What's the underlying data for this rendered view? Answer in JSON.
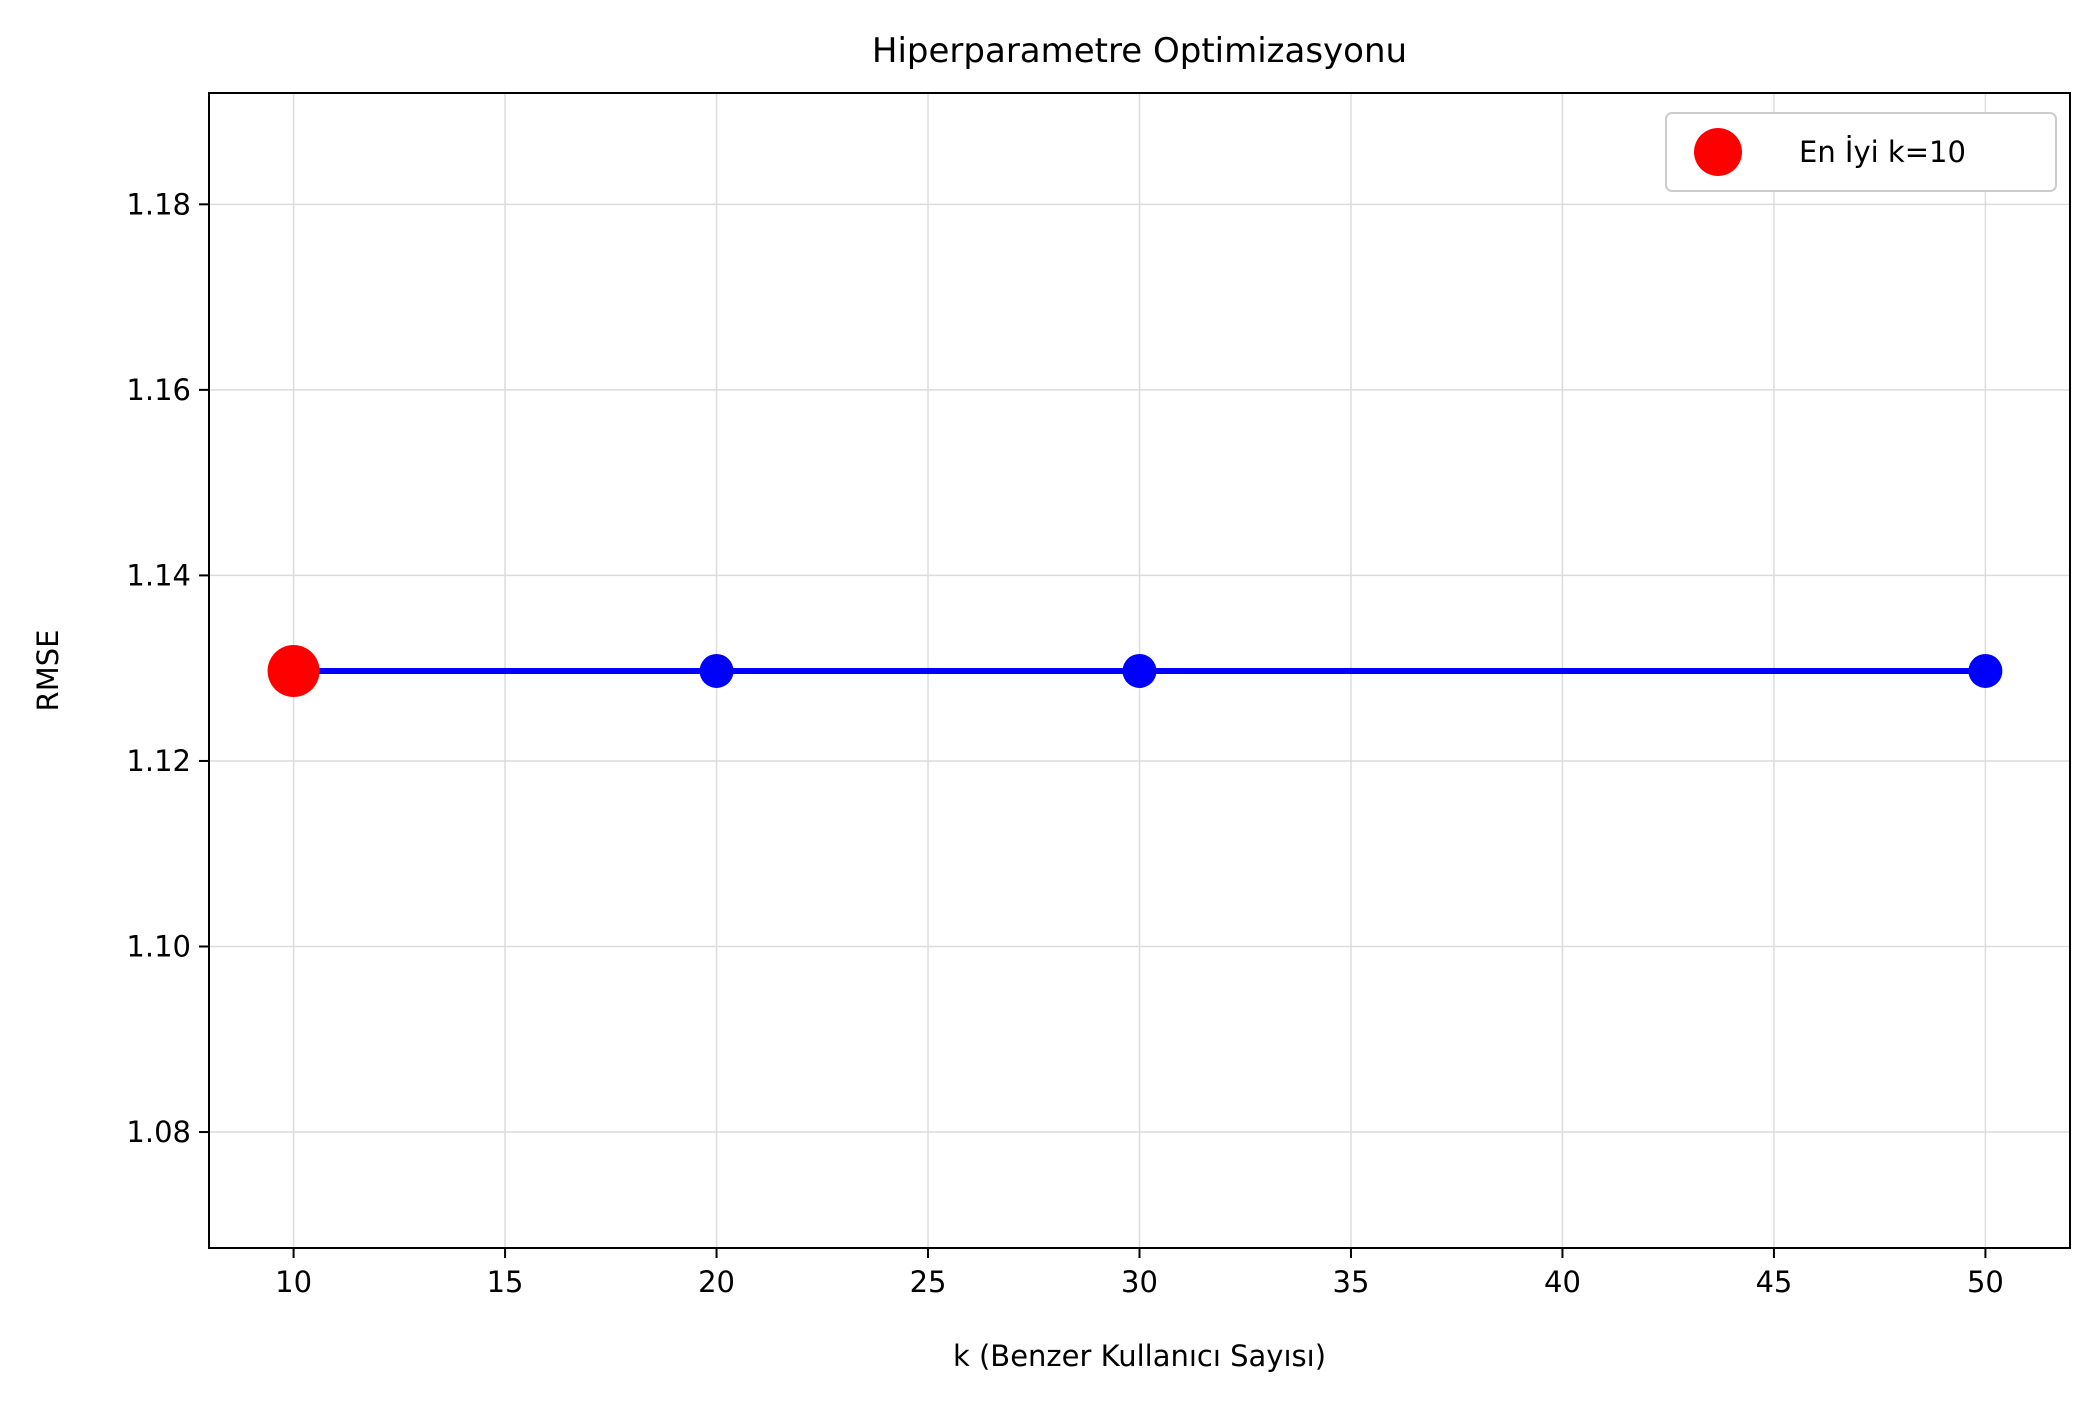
{
  "chart_data": {
    "type": "line",
    "title": "Hiperparametre Optimizasyonu",
    "xlabel": "k (Benzer Kullanıcı Sayısı)",
    "ylabel": "RMSE",
    "xlim": [
      8.0,
      52.0
    ],
    "ylim": [
      1.0675,
      1.192
    ],
    "x_ticks": [
      10,
      15,
      20,
      25,
      30,
      35,
      40,
      45,
      50
    ],
    "x_tick_labels": [
      "10",
      "15",
      "20",
      "25",
      "30",
      "35",
      "40",
      "45",
      "50"
    ],
    "y_ticks": [
      1.08,
      1.1,
      1.12,
      1.14,
      1.16,
      1.18
    ],
    "y_tick_labels": [
      "1.08",
      "1.10",
      "1.12",
      "1.14",
      "1.16",
      "1.18"
    ],
    "grid": true,
    "legend_position": "top-right",
    "series": [
      {
        "color": "#0000ff",
        "marker": "circle",
        "x": [
          10,
          20,
          30,
          50
        ],
        "y": [
          1.1297,
          1.1297,
          1.1297,
          1.1297
        ]
      },
      {
        "name": "En İyi k=10",
        "color": "#ff0000",
        "marker": "circle",
        "line": false,
        "x": [
          10
        ],
        "y": [
          1.1297
        ]
      }
    ]
  }
}
